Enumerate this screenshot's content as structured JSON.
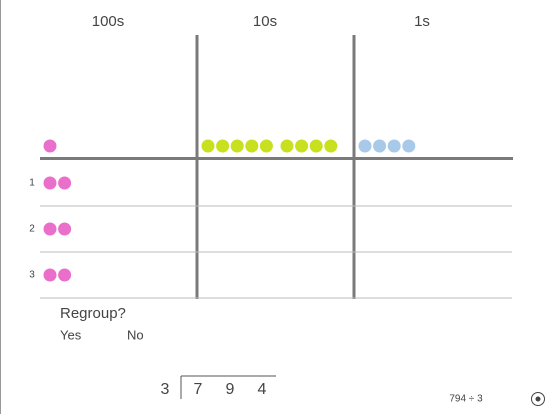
{
  "columns": [
    "100s",
    "10s",
    "1s"
  ],
  "rows": [
    "1",
    "2",
    "3"
  ],
  "counters": {
    "top": [
      1,
      9,
      4
    ],
    "rows": [
      [
        2,
        0,
        0
      ],
      [
        2,
        0,
        0
      ],
      [
        2,
        0,
        0
      ]
    ],
    "colors": [
      "#ea6fcb",
      "#c8e01e",
      "#a9c9e8"
    ]
  },
  "prompt": {
    "question": "Regroup?",
    "options": [
      "Yes",
      "No"
    ]
  },
  "division": {
    "divisor": "3",
    "dividend": [
      "7",
      "9",
      "4"
    ]
  },
  "footer": "794 ÷ 3"
}
